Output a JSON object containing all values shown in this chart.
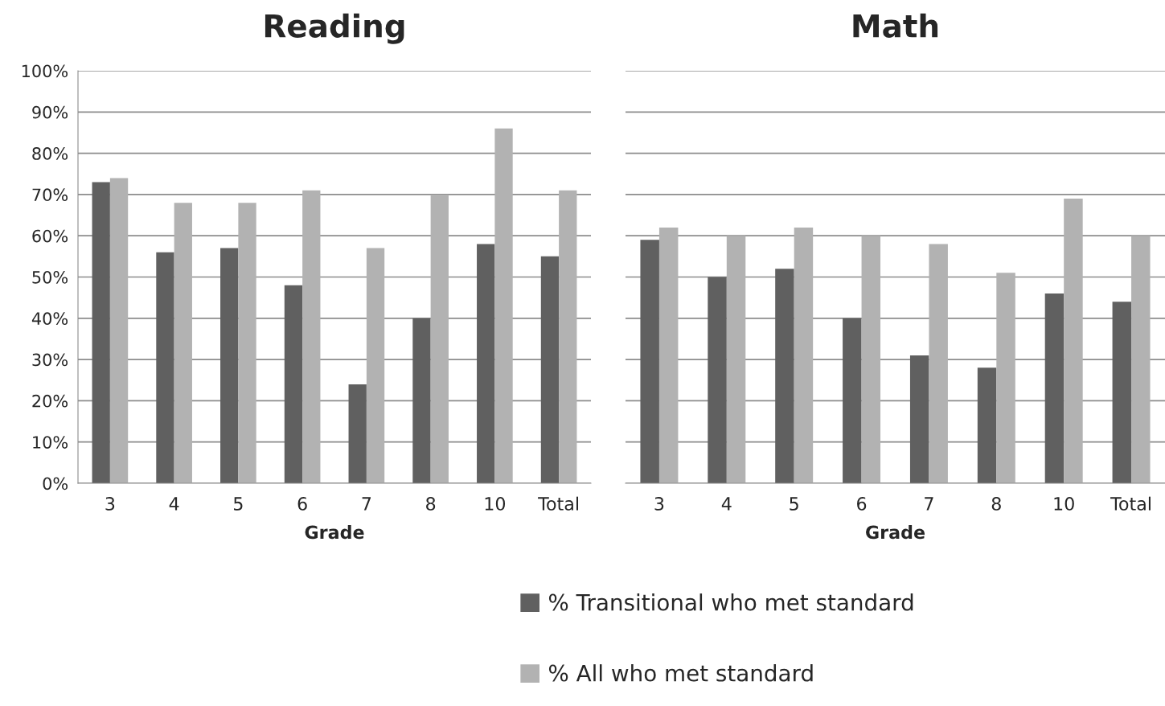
{
  "chart_data": [
    {
      "type": "bar",
      "title": "Reading",
      "xlabel": "Grade",
      "categories": [
        "3",
        "4",
        "5",
        "6",
        "7",
        "8",
        "10",
        "Total"
      ],
      "series": [
        {
          "name": "% Transitional who met standard",
          "color": "#606060",
          "values": [
            73,
            56,
            57,
            48,
            24,
            40,
            58,
            55
          ]
        },
        {
          "name": "% All who met standard",
          "color": "#b2b2b2",
          "values": [
            74,
            68,
            68,
            71,
            57,
            70,
            86,
            71
          ]
        }
      ],
      "ylim": [
        0,
        100
      ],
      "yticks": [
        {
          "value": 0,
          "label": "0%"
        },
        {
          "value": 10,
          "label": "10%"
        },
        {
          "value": 20,
          "label": "20%"
        },
        {
          "value": 30,
          "label": "30%"
        },
        {
          "value": 40,
          "label": "40%"
        },
        {
          "value": 50,
          "label": "50%"
        },
        {
          "value": 60,
          "label": "60%"
        },
        {
          "value": 70,
          "label": "70%"
        },
        {
          "value": 80,
          "label": "80%"
        },
        {
          "value": 90,
          "label": "90%"
        },
        {
          "value": 100,
          "label": "100%"
        }
      ],
      "grid": "y",
      "legend": "bottom"
    },
    {
      "type": "bar",
      "title": "Math",
      "xlabel": "Grade",
      "categories": [
        "3",
        "4",
        "5",
        "6",
        "7",
        "8",
        "10",
        "Total"
      ],
      "series": [
        {
          "color": "#606060",
          "values": [
            59,
            50,
            52,
            40,
            31,
            28,
            46,
            44
          ]
        },
        {
          "color": "#b2b2b2",
          "values": [
            62,
            60,
            62,
            60,
            58,
            51,
            69,
            60
          ]
        }
      ],
      "ylim": [
        0,
        100
      ],
      "yticks": [
        {
          "value": 0,
          "label": null
        },
        {
          "value": 10,
          "label": null
        },
        {
          "value": 20,
          "label": null
        },
        {
          "value": 30,
          "label": null
        },
        {
          "value": 40,
          "label": null
        },
        {
          "value": 50,
          "label": null
        },
        {
          "value": 60,
          "label": null
        },
        {
          "value": 70,
          "label": null
        },
        {
          "value": 80,
          "label": null
        },
        {
          "value": 90,
          "label": null
        },
        {
          "value": 100,
          "label": null
        }
      ],
      "tick_labels": "x",
      "grid": "y",
      "legend": false
    }
  ]
}
